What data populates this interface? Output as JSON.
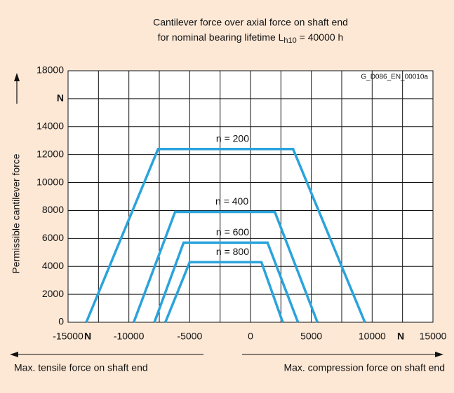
{
  "chart_data": {
    "type": "line",
    "title": "Cantilever force over axial force on shaft end",
    "subtitle": [
      "for nominal bearing lifetime L",
      "h10",
      " = 40000 h"
    ],
    "annotation": "G_D086_EN_00010a",
    "ylabel": "Permissible cantilever force",
    "x_unit": "N",
    "xlabel_left": "Max. tensile force on shaft end",
    "xlabel_right": "Max. compression force on shaft end",
    "xlim": [
      -15000,
      15000
    ],
    "ylim": [
      0,
      18000
    ],
    "xticks": [
      -15000,
      -10000,
      -5000,
      0,
      5000,
      10000,
      15000
    ],
    "xgrid": [
      -12500,
      -10000,
      -7500,
      -5000,
      -2500,
      0,
      2500,
      5000,
      7500,
      10000,
      12500
    ],
    "yticks": [
      0,
      2000,
      4000,
      6000,
      8000,
      10000,
      12000,
      14000,
      {
        "value": 16000,
        "label": "N"
      },
      18000
    ],
    "grid": true,
    "series": [
      {
        "name": "n = 200",
        "color": "#2aa3dc",
        "x": [
          -13500,
          -7600,
          3500,
          9400
        ],
        "values": [
          0,
          12400,
          12400,
          0
        ]
      },
      {
        "name": "n = 400",
        "color": "#2aa3dc",
        "x": [
          -9600,
          -6200,
          2000,
          5500
        ],
        "values": [
          0,
          7900,
          7900,
          0
        ]
      },
      {
        "name": "n = 600",
        "color": "#2aa3dc",
        "x": [
          -7900,
          -5500,
          1400,
          3900
        ],
        "values": [
          0,
          5700,
          5700,
          0
        ]
      },
      {
        "name": "n = 800",
        "color": "#2aa3dc",
        "x": [
          -7000,
          -5000,
          900,
          2650
        ],
        "values": [
          0,
          4300,
          4300,
          0
        ]
      }
    ]
  }
}
